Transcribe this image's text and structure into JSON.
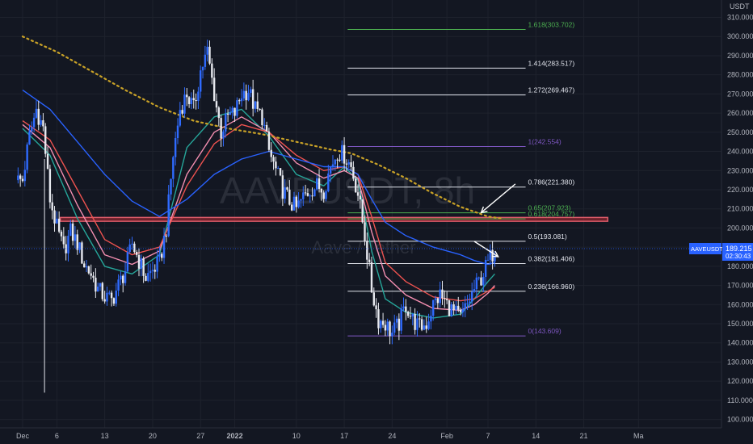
{
  "watermark": {
    "symbol": "AAVEUSDT, 8h",
    "description": "Aave / Tether"
  },
  "chart_data": {
    "type": "candlestick",
    "currency": "USDT",
    "ylim": [
      95,
      315
    ],
    "y_ticks": [
      100,
      110,
      120,
      130,
      140,
      150,
      160,
      170,
      180,
      190,
      200,
      210,
      220,
      230,
      240,
      250,
      260,
      270,
      280,
      290,
      300,
      310
    ],
    "x_ticks": [
      {
        "label": "Dec",
        "day": 0
      },
      {
        "label": "6",
        "day": 5
      },
      {
        "label": "13",
        "day": 12
      },
      {
        "label": "20",
        "day": 19
      },
      {
        "label": "27",
        "day": 26
      },
      {
        "label": "2022",
        "day": 31
      },
      {
        "label": "10",
        "day": 40
      },
      {
        "label": "17",
        "day": 47
      },
      {
        "label": "24",
        "day": 54
      },
      {
        "label": "Feb",
        "day": 62
      },
      {
        "label": "7",
        "day": 68
      },
      {
        "label": "14",
        "day": 75
      },
      {
        "label": "21",
        "day": 82
      },
      {
        "label": "Ma",
        "day": 90
      }
    ],
    "price_label": {
      "symbol": "AAVEUSDT",
      "price": "189.215",
      "countdown": "02:30:43",
      "value": 189.215
    },
    "fib_levels": [
      {
        "label": "1.618(303.702)",
        "value": 303.702,
        "color": "#4caf50"
      },
      {
        "label": "1.414(283.517)",
        "value": 283.517,
        "color": "#e0e3eb"
      },
      {
        "label": "1.272(269.467)",
        "value": 269.467,
        "color": "#e0e3eb"
      },
      {
        "label": "1(242.554)",
        "value": 242.554,
        "color": "#7e57c2"
      },
      {
        "label": "0.786(221.380)",
        "value": 221.38,
        "color": "#e0e3eb"
      },
      {
        "label": "0.65(207.923)",
        "value": 207.923,
        "color": "#4caf50"
      },
      {
        "label": "0.618(204.757)",
        "value": 204.757,
        "color": "#4caf50"
      },
      {
        "label": "0.5(193.081)",
        "value": 193.081,
        "color": "#e0e3eb"
      },
      {
        "label": "0.382(181.406)",
        "value": 181.406,
        "color": "#e0e3eb"
      },
      {
        "label": "0.236(166.960)",
        "value": 166.96,
        "color": "#e0e3eb"
      },
      {
        "label": "0(143.609)",
        "value": 143.609,
        "color": "#7e57c2"
      }
    ],
    "fib_day_range": [
      47.5,
      73.5
    ],
    "resistance_zone": {
      "low": 203.5,
      "high": 205.5,
      "from_day": 5.5,
      "to_day": 85.5
    },
    "candle_closes": [
      [
        0,
        225
      ],
      [
        1,
        248
      ],
      [
        2,
        262
      ],
      [
        3,
        252
      ],
      [
        4,
        215
      ],
      [
        5,
        200
      ],
      [
        6,
        188
      ],
      [
        7,
        198
      ],
      [
        8,
        192
      ],
      [
        9,
        181
      ],
      [
        10,
        176
      ],
      [
        11,
        168
      ],
      [
        12,
        164
      ],
      [
        13,
        162
      ],
      [
        14,
        170
      ],
      [
        15,
        178
      ],
      [
        16,
        192
      ],
      [
        17,
        183
      ],
      [
        18,
        174
      ],
      [
        19,
        178
      ],
      [
        20,
        182
      ],
      [
        21,
        200
      ],
      [
        22,
        238
      ],
      [
        23,
        262
      ],
      [
        24,
        270
      ],
      [
        25,
        262
      ],
      [
        26,
        282
      ],
      [
        27,
        292
      ],
      [
        28,
        270
      ],
      [
        29,
        250
      ],
      [
        30,
        258
      ],
      [
        31,
        260
      ],
      [
        32,
        270
      ],
      [
        33,
        272
      ],
      [
        34,
        262
      ],
      [
        35,
        258
      ],
      [
        36,
        240
      ],
      [
        37,
        230
      ],
      [
        38,
        220
      ],
      [
        39,
        214
      ],
      [
        40,
        210
      ],
      [
        41,
        216
      ],
      [
        42,
        220
      ],
      [
        43,
        222
      ],
      [
        44,
        220
      ],
      [
        45,
        232
      ],
      [
        46,
        240
      ],
      [
        47,
        238
      ],
      [
        48,
        232
      ],
      [
        49,
        218
      ],
      [
        50,
        196
      ],
      [
        51,
        168
      ],
      [
        52,
        152
      ],
      [
        53,
        150
      ],
      [
        54,
        145
      ],
      [
        55,
        150
      ],
      [
        56,
        160
      ],
      [
        57,
        152
      ],
      [
        58,
        148
      ],
      [
        59,
        150
      ],
      [
        60,
        160
      ],
      [
        61,
        165
      ],
      [
        62,
        160
      ],
      [
        63,
        156
      ],
      [
        64,
        153
      ],
      [
        65,
        160
      ],
      [
        66,
        168
      ],
      [
        67,
        174
      ],
      [
        68,
        182
      ],
      [
        69,
        189.215
      ]
    ],
    "ema_series": [
      {
        "color": "#26a69a",
        "points": [
          [
            0,
            252
          ],
          [
            4,
            238
          ],
          [
            8,
            205
          ],
          [
            12,
            180
          ],
          [
            16,
            176
          ],
          [
            20,
            186
          ],
          [
            24,
            242
          ],
          [
            28,
            258
          ],
          [
            32,
            262
          ],
          [
            36,
            248
          ],
          [
            40,
            228
          ],
          [
            44,
            222
          ],
          [
            47,
            232
          ],
          [
            49,
            225
          ],
          [
            51,
            188
          ],
          [
            53,
            163
          ],
          [
            56,
            156
          ],
          [
            60,
            153
          ],
          [
            64,
            155
          ],
          [
            66,
            163
          ],
          [
            68,
            172
          ],
          [
            69,
            176
          ]
        ]
      },
      {
        "color": "#f48fb1",
        "points": [
          [
            0,
            254
          ],
          [
            4,
            242
          ],
          [
            8,
            212
          ],
          [
            12,
            186
          ],
          [
            16,
            181
          ],
          [
            20,
            188
          ],
          [
            24,
            228
          ],
          [
            28,
            250
          ],
          [
            32,
            258
          ],
          [
            36,
            250
          ],
          [
            40,
            234
          ],
          [
            44,
            226
          ],
          [
            47,
            230
          ],
          [
            49,
            226
          ],
          [
            51,
            198
          ],
          [
            53,
            175
          ],
          [
            56,
            165
          ],
          [
            60,
            158
          ],
          [
            64,
            157
          ],
          [
            66,
            160
          ],
          [
            68,
            166
          ],
          [
            69,
            170
          ]
        ]
      },
      {
        "color": "#ef5350",
        "points": [
          [
            0,
            256
          ],
          [
            4,
            246
          ],
          [
            8,
            220
          ],
          [
            12,
            194
          ],
          [
            16,
            186
          ],
          [
            20,
            190
          ],
          [
            24,
            222
          ],
          [
            28,
            244
          ],
          [
            32,
            254
          ],
          [
            36,
            250
          ],
          [
            40,
            238
          ],
          [
            44,
            230
          ],
          [
            47,
            232
          ],
          [
            49,
            228
          ],
          [
            51,
            206
          ],
          [
            53,
            182
          ],
          [
            56,
            172
          ],
          [
            60,
            164
          ],
          [
            64,
            162
          ],
          [
            66,
            163
          ],
          [
            68,
            167
          ],
          [
            69,
            169
          ]
        ]
      },
      {
        "color": "#2962ff",
        "points": [
          [
            0,
            272
          ],
          [
            4,
            262
          ],
          [
            8,
            245
          ],
          [
            12,
            228
          ],
          [
            16,
            214
          ],
          [
            20,
            206
          ],
          [
            24,
            215
          ],
          [
            28,
            228
          ],
          [
            32,
            236
          ],
          [
            36,
            240
          ],
          [
            40,
            236
          ],
          [
            44,
            232
          ],
          [
            47,
            232
          ],
          [
            49,
            228
          ],
          [
            51,
            215
          ],
          [
            53,
            203
          ],
          [
            56,
            196
          ],
          [
            60,
            190
          ],
          [
            64,
            186
          ],
          [
            66,
            183
          ],
          [
            68,
            181
          ],
          [
            69,
            182
          ]
        ]
      },
      {
        "color": "#c9a227",
        "dashed": true,
        "points": [
          [
            0,
            300
          ],
          [
            5,
            292
          ],
          [
            10,
            282
          ],
          [
            15,
            272
          ],
          [
            20,
            263
          ],
          [
            25,
            256
          ],
          [
            30,
            252
          ],
          [
            35,
            249
          ],
          [
            40,
            245
          ],
          [
            45,
            241
          ],
          [
            48,
            239
          ],
          [
            52,
            233
          ],
          [
            56,
            226
          ],
          [
            60,
            218
          ],
          [
            64,
            211
          ],
          [
            68,
            206
          ],
          [
            70,
            205
          ]
        ]
      }
    ],
    "arrows": [
      {
        "from": [
          72,
          223
        ],
        "to": [
          67,
          208
        ]
      },
      {
        "from": [
          66,
          193
        ],
        "to": [
          69.5,
          185
        ]
      }
    ]
  }
}
